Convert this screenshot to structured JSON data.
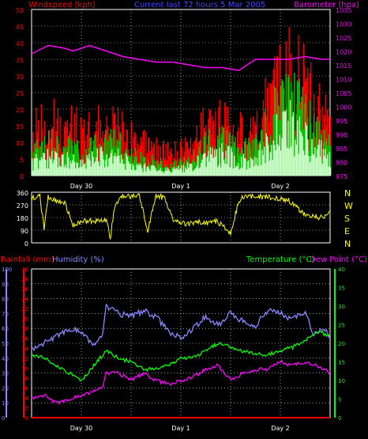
{
  "chart_data": [
    {
      "type": "area",
      "title": "Current last 72 hours 5 Mar 2005",
      "ylabel_left": "Windspeed (kph)",
      "ylabel_right": "Barometer (hpa)",
      "y_left_ticks": [
        0,
        5,
        10,
        15,
        20,
        25,
        30,
        35,
        40,
        45,
        50
      ],
      "ylim_left": [
        0,
        50
      ],
      "y_right_ticks": [
        975,
        980,
        985,
        990,
        995,
        1000,
        1005,
        1010,
        1015,
        1020,
        1025,
        1030,
        1035
      ],
      "ylim_right": [
        975,
        1035
      ],
      "x_tick_labels": [
        "Day 30",
        "Day 1",
        "Day 2"
      ],
      "grid": true,
      "series": [
        {
          "key": "gust",
          "color": "#ff0000",
          "hours": [
            0,
            4,
            8,
            10,
            12,
            14,
            18,
            22,
            26,
            30,
            34,
            38,
            42,
            46,
            50,
            54,
            58,
            62,
            66,
            70,
            72
          ],
          "values": [
            14,
            18,
            15,
            16,
            12,
            14,
            17,
            15,
            10,
            8,
            7,
            9,
            16,
            17,
            14,
            15,
            26,
            36,
            28,
            20,
            14
          ]
        },
        {
          "key": "speed",
          "color": "#00c800",
          "hours": [
            0,
            4,
            8,
            10,
            12,
            14,
            18,
            22,
            26,
            30,
            34,
            38,
            42,
            46,
            50,
            54,
            58,
            62,
            66,
            70,
            72
          ],
          "values": [
            8,
            10,
            8,
            9,
            6,
            8,
            11,
            9,
            5,
            4,
            3,
            5,
            10,
            11,
            8,
            9,
            18,
            24,
            18,
            12,
            8
          ]
        },
        {
          "key": "average",
          "color": "#ccffcc",
          "hours": [
            0,
            4,
            8,
            10,
            12,
            14,
            18,
            22,
            26,
            30,
            34,
            38,
            42,
            46,
            50,
            54,
            58,
            62,
            66,
            70,
            72
          ],
          "values": [
            4,
            6,
            5,
            5,
            4,
            5,
            7,
            5,
            3,
            2,
            2,
            3,
            6,
            7,
            5,
            5,
            12,
            16,
            12,
            8,
            5
          ]
        },
        {
          "key": "barometer",
          "color": "#ff00ff",
          "axis": "right",
          "hours": [
            0,
            4,
            8,
            10,
            12,
            14,
            18,
            22,
            26,
            30,
            34,
            38,
            42,
            46,
            50,
            54,
            58,
            62,
            66,
            70,
            72
          ],
          "values": [
            1019,
            1022,
            1021,
            1020,
            1021,
            1022,
            1020,
            1018,
            1017,
            1016,
            1016,
            1015,
            1014,
            1014,
            1013,
            1017,
            1017,
            1017,
            1018,
            1017,
            1017
          ]
        }
      ]
    },
    {
      "type": "line",
      "ylabel_left_ticks": [
        0,
        90,
        180,
        270,
        360
      ],
      "ylim": [
        0,
        360
      ],
      "right_labels": [
        "N",
        "W",
        "S",
        "E",
        "N"
      ],
      "x_tick_labels": [
        "Day 30",
        "Day 1",
        "Day 2"
      ],
      "series": [
        {
          "key": "direction",
          "color": "#ffff00",
          "hours": [
            0,
            2,
            3,
            4,
            6,
            8,
            10,
            12,
            14,
            16,
            18,
            19,
            20,
            22,
            24,
            26,
            28,
            30,
            32,
            34,
            36,
            38,
            40,
            42,
            44,
            46,
            48,
            50,
            52,
            54,
            56,
            58,
            60,
            62,
            64,
            66,
            68,
            70,
            72
          ],
          "values": [
            320,
            330,
            100,
            330,
            300,
            290,
            120,
            150,
            160,
            150,
            160,
            40,
            250,
            340,
            330,
            340,
            80,
            340,
            320,
            170,
            140,
            130,
            150,
            140,
            160,
            130,
            60,
            300,
            340,
            320,
            330,
            320,
            310,
            300,
            250,
            200,
            190,
            180,
            210
          ]
        }
      ]
    },
    {
      "type": "line",
      "ylabel_left_1": "Rainfall (mm)",
      "ylabel_left_2": "Humidity (%)",
      "ylabel_right_1": "Temperature (°C)",
      "ylabel_right_2": "Dew Point (°C)",
      "humidity_ticks": [
        0,
        10,
        20,
        30,
        40,
        50,
        60,
        70,
        80,
        90,
        100
      ],
      "rain_ticks": [
        0,
        2,
        4,
        6,
        8,
        10,
        12,
        14,
        16,
        18,
        20,
        22,
        24,
        26,
        28,
        30
      ],
      "temp_ticks": [
        0,
        5,
        10,
        15,
        20,
        25,
        30,
        35,
        40
      ],
      "ylim_humidity": [
        0,
        100
      ],
      "ylim_temp": [
        0,
        40
      ],
      "x_tick_labels": [
        "Day 30",
        "Day 1",
        "Day 2"
      ],
      "series": [
        {
          "key": "humidity",
          "color": "#8888ff",
          "axis": "humidity",
          "hours": [
            0,
            3,
            6,
            9,
            12,
            15,
            17,
            18,
            21,
            24,
            27,
            30,
            33,
            36,
            39,
            42,
            45,
            48,
            51,
            54,
            57,
            60,
            63,
            66,
            68,
            70,
            72
          ],
          "values": [
            45,
            50,
            55,
            60,
            58,
            48,
            55,
            75,
            70,
            68,
            72,
            68,
            58,
            54,
            60,
            68,
            62,
            70,
            65,
            62,
            72,
            70,
            66,
            72,
            56,
            60,
            55
          ]
        },
        {
          "key": "temperature",
          "color": "#00ff00",
          "axis": "temp",
          "hours": [
            0,
            3,
            6,
            9,
            12,
            15,
            18,
            21,
            24,
            27,
            30,
            33,
            36,
            39,
            42,
            45,
            48,
            51,
            54,
            57,
            60,
            63,
            66,
            69,
            72
          ],
          "values": [
            17,
            16,
            14,
            12,
            10,
            14,
            18,
            16,
            15,
            13,
            13,
            14,
            16,
            16,
            18,
            20,
            19,
            18,
            17,
            17,
            18,
            19,
            21,
            23,
            22
          ]
        },
        {
          "key": "dewpoint",
          "color": "#ff00ff",
          "axis": "temp",
          "hours": [
            0,
            3,
            6,
            9,
            12,
            15,
            17,
            18,
            21,
            24,
            27,
            30,
            33,
            36,
            39,
            42,
            45,
            48,
            51,
            54,
            57,
            60,
            63,
            66,
            69,
            72
          ],
          "values": [
            5,
            6,
            4,
            5,
            6,
            7,
            8,
            12,
            12,
            10,
            12,
            10,
            9,
            10,
            11,
            13,
            14,
            10,
            12,
            13,
            13,
            15,
            14,
            15,
            14,
            12
          ]
        },
        {
          "key": "rainfall",
          "color": "#ff0000",
          "axis": "rain",
          "hours": [
            0,
            72
          ],
          "values": [
            0,
            0
          ]
        }
      ]
    }
  ]
}
